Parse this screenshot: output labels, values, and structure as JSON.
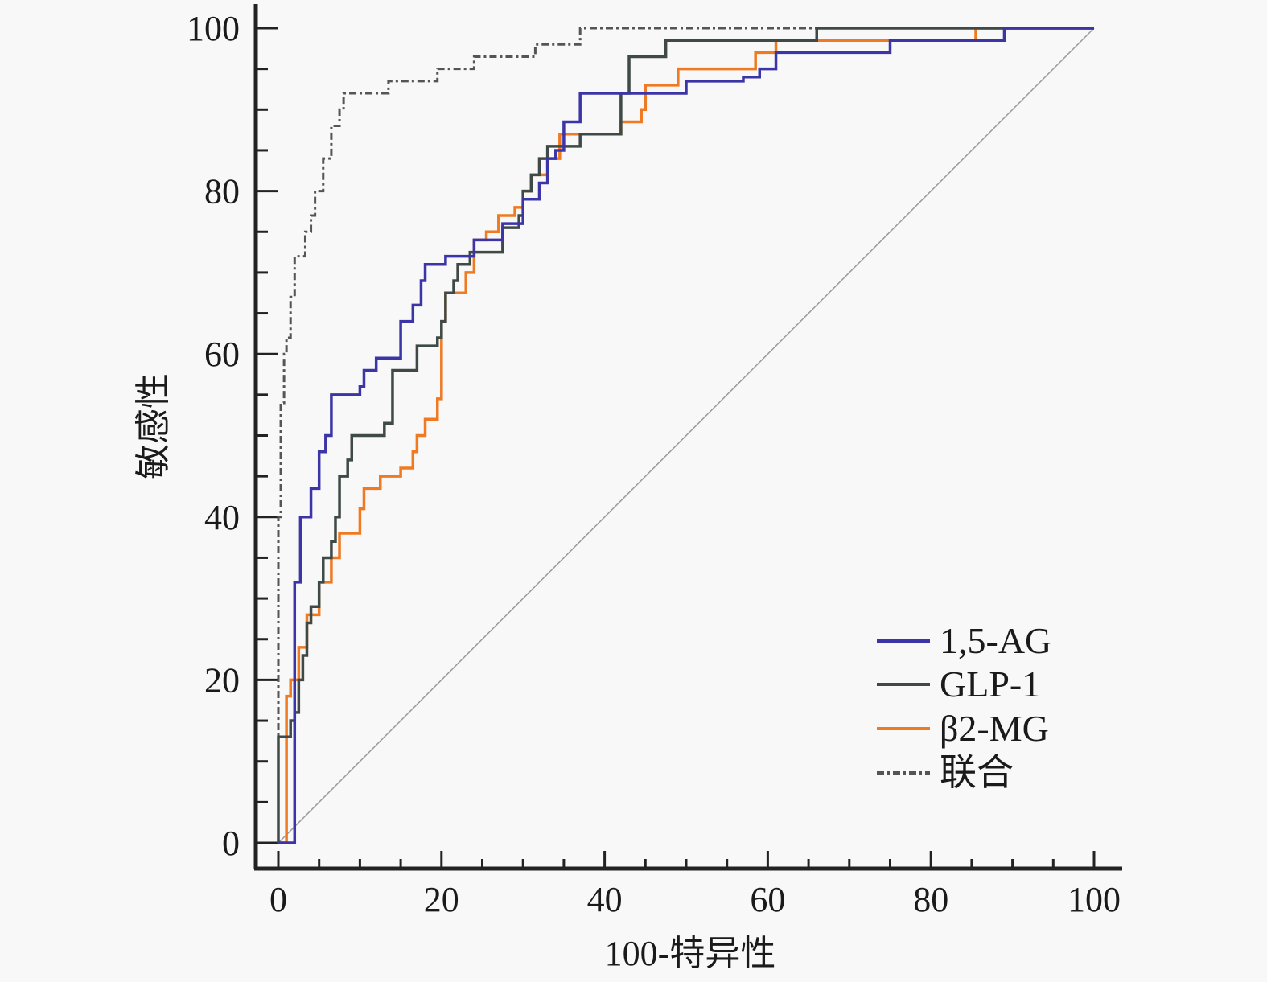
{
  "chart_data": {
    "type": "line",
    "title": "",
    "xlabel": "100-特异性",
    "ylabel": "敏感性",
    "xlim": [
      0,
      100
    ],
    "ylim": [
      0,
      100
    ],
    "xticks": [
      "0",
      "20",
      "40",
      "60",
      "80",
      "100"
    ],
    "yticks": [
      "0",
      "20",
      "40",
      "60",
      "80",
      "100"
    ],
    "grid": false,
    "legend_position": "bottom-right",
    "reference_line": {
      "x": [
        0,
        100
      ],
      "y": [
        0,
        100
      ],
      "color": "#9a9a9a"
    },
    "series": [
      {
        "name": "1,5-AG",
        "color": "#3b35a8",
        "style": "solid",
        "points": [
          [
            0,
            0
          ],
          [
            2,
            0
          ],
          [
            2,
            32
          ],
          [
            2.7,
            40
          ],
          [
            4,
            43.5
          ],
          [
            5,
            48
          ],
          [
            5.8,
            50
          ],
          [
            6.5,
            55
          ],
          [
            10,
            56
          ],
          [
            10.5,
            58
          ],
          [
            12,
            59.5
          ],
          [
            15,
            64
          ],
          [
            16.5,
            66
          ],
          [
            17.5,
            69
          ],
          [
            18,
            71
          ],
          [
            20.5,
            72
          ],
          [
            24,
            74
          ],
          [
            27.5,
            76
          ],
          [
            30,
            79
          ],
          [
            32,
            81
          ],
          [
            33,
            84
          ],
          [
            34,
            85
          ],
          [
            35,
            88.5
          ],
          [
            37,
            92
          ],
          [
            50,
            93.5
          ],
          [
            57,
            94
          ],
          [
            59,
            95
          ],
          [
            61,
            97
          ],
          [
            75,
            98.5
          ],
          [
            89,
            100
          ],
          [
            100,
            100
          ]
        ]
      },
      {
        "name": "GLP-1",
        "color": "#3f4a46",
        "style": "solid",
        "points": [
          [
            0,
            0
          ],
          [
            0,
            13
          ],
          [
            1.5,
            15
          ],
          [
            2,
            16
          ],
          [
            2.5,
            20
          ],
          [
            3,
            23
          ],
          [
            3.5,
            27
          ],
          [
            4,
            29
          ],
          [
            5,
            32
          ],
          [
            5.5,
            35
          ],
          [
            6.5,
            37
          ],
          [
            7,
            40
          ],
          [
            7.5,
            45
          ],
          [
            8.5,
            47
          ],
          [
            9,
            50
          ],
          [
            13,
            51.5
          ],
          [
            14,
            58
          ],
          [
            17,
            61
          ],
          [
            19.5,
            62
          ],
          [
            20,
            64
          ],
          [
            20.5,
            67.5
          ],
          [
            21.5,
            69
          ],
          [
            22,
            71
          ],
          [
            23.5,
            72.5
          ],
          [
            27.5,
            75.5
          ],
          [
            29.5,
            77
          ],
          [
            30,
            80
          ],
          [
            31,
            82
          ],
          [
            32,
            84
          ],
          [
            33,
            85.5
          ],
          [
            37,
            87
          ],
          [
            42,
            92
          ],
          [
            43,
            96.5
          ],
          [
            47.5,
            98.5
          ],
          [
            66,
            100
          ],
          [
            100,
            100
          ]
        ]
      },
      {
        "name": "β2-MG",
        "color": "#f07a22",
        "style": "solid",
        "points": [
          [
            0,
            0
          ],
          [
            1,
            0
          ],
          [
            1,
            18
          ],
          [
            1.5,
            20
          ],
          [
            2.5,
            24
          ],
          [
            3.5,
            28
          ],
          [
            5,
            32
          ],
          [
            6.5,
            35
          ],
          [
            7.5,
            38
          ],
          [
            10,
            41
          ],
          [
            10.5,
            43.5
          ],
          [
            12.5,
            45
          ],
          [
            15,
            46
          ],
          [
            16.5,
            48
          ],
          [
            17,
            50
          ],
          [
            18,
            52
          ],
          [
            19.5,
            54.5
          ],
          [
            20,
            64
          ],
          [
            20.5,
            67.5
          ],
          [
            23,
            70
          ],
          [
            24,
            74
          ],
          [
            25.5,
            75
          ],
          [
            27,
            77
          ],
          [
            29,
            78
          ],
          [
            30,
            80
          ],
          [
            31,
            82
          ],
          [
            33,
            84
          ],
          [
            34.5,
            87
          ],
          [
            42,
            88.5
          ],
          [
            44.5,
            90
          ],
          [
            45,
            93
          ],
          [
            49,
            95
          ],
          [
            58.5,
            97
          ],
          [
            61,
            98.5
          ],
          [
            85.5,
            100
          ],
          [
            100,
            100
          ]
        ]
      },
      {
        "name": "联合",
        "color": "#555555",
        "style": "dash-dot",
        "points": [
          [
            0,
            0
          ],
          [
            0,
            40
          ],
          [
            0.3,
            54
          ],
          [
            0.7,
            60
          ],
          [
            1,
            62
          ],
          [
            1.5,
            67
          ],
          [
            2,
            72
          ],
          [
            3.3,
            75
          ],
          [
            4,
            77
          ],
          [
            4.5,
            80
          ],
          [
            5.5,
            84
          ],
          [
            6.5,
            88
          ],
          [
            7.5,
            90
          ],
          [
            8,
            92
          ],
          [
            13.5,
            93.5
          ],
          [
            19.5,
            95
          ],
          [
            24,
            96.5
          ],
          [
            31.5,
            98
          ],
          [
            37,
            100
          ],
          [
            100,
            100
          ]
        ]
      }
    ]
  }
}
